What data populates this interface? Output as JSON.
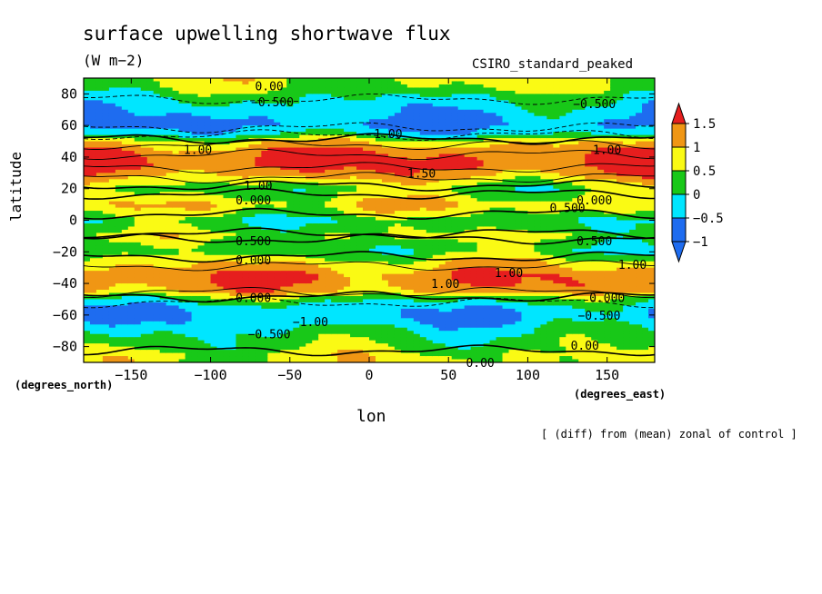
{
  "chart_data": {
    "type": "heatmap",
    "title": "surface upwelling shortwave flux",
    "units": "(W m−2)",
    "model": "CSIRO_standard_peaked",
    "xlabel": "lon",
    "ylabel": "latitude",
    "x_units_label": "(degrees_east)",
    "y_units_label": "(degrees_north)",
    "footnote": "[ (diff) from (mean) zonal of control ]",
    "xlim": [
      -180,
      180
    ],
    "ylim": [
      -90,
      90
    ],
    "x_ticks": [
      -150,
      -100,
      -50,
      0,
      50,
      100,
      150
    ],
    "y_ticks": [
      -80,
      -60,
      -40,
      -20,
      0,
      20,
      40,
      60,
      80
    ],
    "x_tick_labels": [
      "−150",
      "−100",
      "−50",
      "0",
      "50",
      "100",
      "150"
    ],
    "y_tick_labels": [
      "−80",
      "−60",
      "−40",
      "−20",
      "0",
      "20",
      "40",
      "60",
      "80"
    ],
    "colorbar": {
      "labels": [
        "1.5",
        "1",
        "0.5",
        "0",
        "−0.5",
        "−1"
      ],
      "levels": [
        -1,
        -0.5,
        0,
        0.5,
        1,
        1.5
      ],
      "colors": [
        "#1e6cf0",
        "#00e6ff",
        "#18c818",
        "#fafa14",
        "#f09614",
        "#e61e1e"
      ],
      "extend": "both"
    },
    "zonal_profile": [
      {
        "lat": 90,
        "value": 0.1
      },
      {
        "lat": 85,
        "value": 0.0
      },
      {
        "lat": 80,
        "value": -0.3
      },
      {
        "lat": 75,
        "value": -0.6
      },
      {
        "lat": 70,
        "value": -0.8
      },
      {
        "lat": 65,
        "value": -1.0
      },
      {
        "lat": 60,
        "value": -1.1
      },
      {
        "lat": 55,
        "value": -0.7
      },
      {
        "lat": 50,
        "value": 0.3
      },
      {
        "lat": 45,
        "value": 0.8
      },
      {
        "lat": 40,
        "value": 1.1
      },
      {
        "lat": 35,
        "value": 1.1
      },
      {
        "lat": 30,
        "value": 0.8
      },
      {
        "lat": 25,
        "value": 0.3
      },
      {
        "lat": 20,
        "value": -0.2
      },
      {
        "lat": 15,
        "value": 0.1
      },
      {
        "lat": 10,
        "value": 0.4
      },
      {
        "lat": 5,
        "value": 0.1
      },
      {
        "lat": 0,
        "value": -0.4
      },
      {
        "lat": -5,
        "value": -0.2
      },
      {
        "lat": -10,
        "value": 0.1
      },
      {
        "lat": -15,
        "value": -0.2
      },
      {
        "lat": -20,
        "value": -0.3
      },
      {
        "lat": -25,
        "value": 0.2
      },
      {
        "lat": -30,
        "value": 0.6
      },
      {
        "lat": -35,
        "value": 0.9
      },
      {
        "lat": -40,
        "value": 0.9
      },
      {
        "lat": -45,
        "value": 0.6
      },
      {
        "lat": -50,
        "value": -0.3
      },
      {
        "lat": -55,
        "value": -0.8
      },
      {
        "lat": -60,
        "value": -1.0
      },
      {
        "lat": -65,
        "value": -0.8
      },
      {
        "lat": -70,
        "value": -0.5
      },
      {
        "lat": -75,
        "value": -0.3
      },
      {
        "lat": -80,
        "value": -0.1
      },
      {
        "lat": -85,
        "value": 0.1
      },
      {
        "lat": -90,
        "value": 0.2
      }
    ],
    "contour_labels": [
      {
        "text": "0.00",
        "lon": -63,
        "lat": 85
      },
      {
        "text": "−0.500",
        "lon": -61,
        "lat": 75
      },
      {
        "text": "−0.500",
        "lon": 142,
        "lat": 74
      },
      {
        "text": "1.00",
        "lon": -108,
        "lat": 45
      },
      {
        "text": "1.00",
        "lon": 12,
        "lat": 55
      },
      {
        "text": "1.00",
        "lon": 150,
        "lat": 45
      },
      {
        "text": "1.50",
        "lon": 33,
        "lat": 30
      },
      {
        "text": "1.00",
        "lon": -70,
        "lat": 22
      },
      {
        "text": "0.000",
        "lon": -73,
        "lat": 13
      },
      {
        "text": "0.000",
        "lon": 142,
        "lat": 13
      },
      {
        "text": "0.500",
        "lon": 125,
        "lat": 8
      },
      {
        "text": "0.500",
        "lon": -73,
        "lat": -13
      },
      {
        "text": "0.500",
        "lon": 142,
        "lat": -13
      },
      {
        "text": "0.000",
        "lon": -73,
        "lat": -25
      },
      {
        "text": "1.00",
        "lon": 88,
        "lat": -33
      },
      {
        "text": "1.00",
        "lon": 48,
        "lat": -40
      },
      {
        "text": "1.00",
        "lon": 166,
        "lat": -28
      },
      {
        "text": "0.000",
        "lon": -73,
        "lat": -49
      },
      {
        "text": "0.000",
        "lon": 150,
        "lat": -49
      },
      {
        "text": "−1.00",
        "lon": -37,
        "lat": -64
      },
      {
        "text": "−0.500",
        "lon": -63,
        "lat": -72
      },
      {
        "text": "−0.500",
        "lon": 145,
        "lat": -60
      },
      {
        "text": "0.00",
        "lon": 136,
        "lat": -79
      },
      {
        "text": "0.00",
        "lon": 70,
        "lat": -90
      }
    ]
  }
}
